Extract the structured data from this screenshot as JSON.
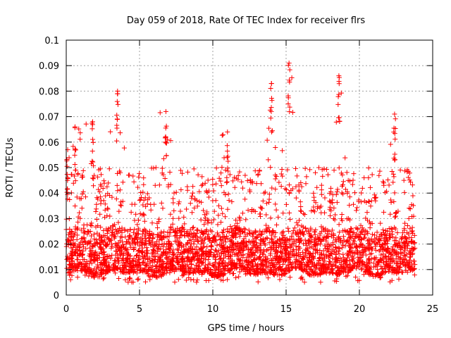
{
  "chart_data": {
    "type": "scatter",
    "title": "Day 059 of 2018, Rate Of TEC Index for receiver flrs",
    "xlabel": "GPS time / hours",
    "ylabel": "ROTI / TECUs",
    "xlim": [
      0,
      25
    ],
    "ylim": [
      0,
      0.1
    ],
    "xticks": [
      0,
      5,
      10,
      15,
      20,
      25
    ],
    "xtick_labels": [
      "0",
      "5",
      "10",
      "15",
      "20",
      "25"
    ],
    "yticks": [
      0,
      0.01,
      0.02,
      0.03,
      0.04,
      0.05,
      0.06,
      0.07,
      0.08,
      0.09,
      0.1
    ],
    "ytick_labels": [
      "0",
      "0.01",
      "0.02",
      "0.03",
      "0.04",
      "0.05",
      "0.06",
      "0.07",
      "0.08",
      "0.09",
      "0.1"
    ],
    "grid": true,
    "marker": "+",
    "marker_color": "#ff0000",
    "data_range_hours": [
      0,
      23.8
    ],
    "notable_peaks": [
      {
        "x": 0.1,
        "y": 0.057
      },
      {
        "x": 0.6,
        "y": 0.066
      },
      {
        "x": 1.8,
        "y": 0.068
      },
      {
        "x": 3.5,
        "y": 0.08
      },
      {
        "x": 6.8,
        "y": 0.072
      },
      {
        "x": 11.0,
        "y": 0.064
      },
      {
        "x": 14.0,
        "y": 0.083
      },
      {
        "x": 15.2,
        "y": 0.091
      },
      {
        "x": 18.6,
        "y": 0.086
      },
      {
        "x": 22.4,
        "y": 0.071
      }
    ],
    "typical_range": [
      0.005,
      0.03
    ]
  }
}
